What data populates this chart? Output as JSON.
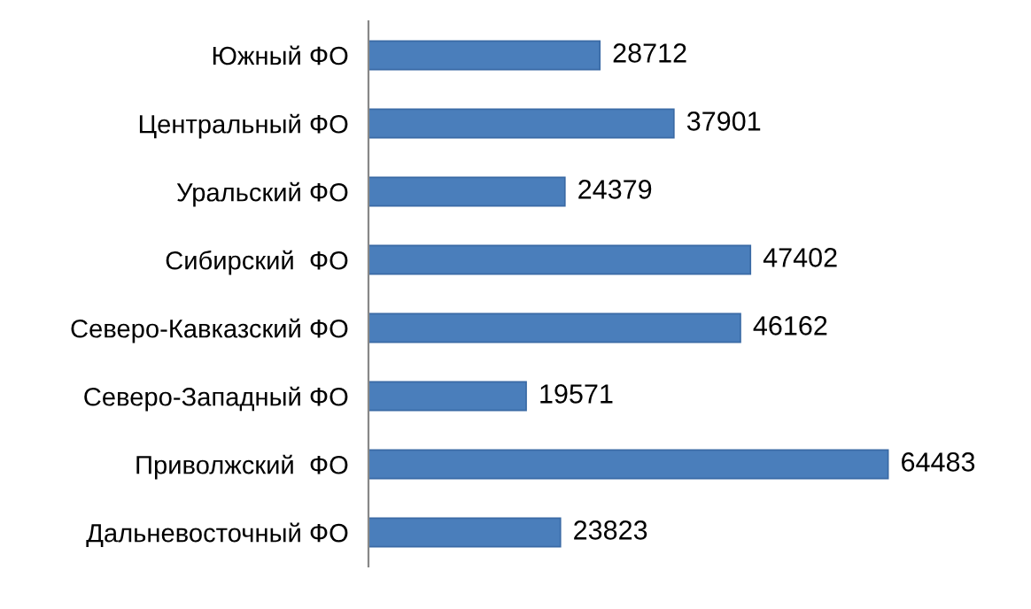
{
  "chart_data": {
    "type": "bar",
    "orientation": "horizontal",
    "categories": [
      "Южный ФО",
      "Центральный ФО",
      "Уральский ФО",
      "Сибирский  ФО",
      "Северо-Кавказский ФО",
      "Северо-Западный ФО",
      "Приволжский  ФО",
      "Дальневосточный ФО"
    ],
    "values": [
      28712,
      37901,
      24379,
      47402,
      46162,
      19571,
      64483,
      23823
    ],
    "color": "#4a7ebb",
    "data_labels": true,
    "grid": false,
    "legend": false
  }
}
